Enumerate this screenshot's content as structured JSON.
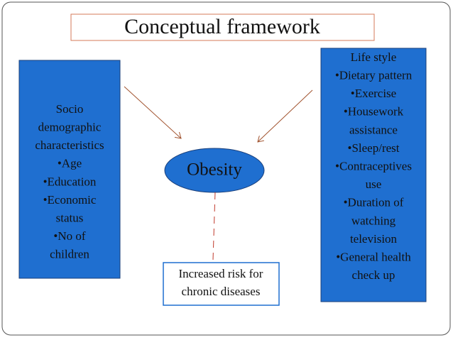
{
  "title": "Conceptual framework",
  "nodes": [
    {
      "id": "socio",
      "lines": [
        "Socio",
        "demographic",
        "characteristics",
        "•Age",
        "•Education",
        "•Economic",
        "status",
        "•No of",
        "children"
      ]
    },
    {
      "id": "lifestyle",
      "lines": [
        "Life style",
        "•Dietary pattern",
        "•Exercise",
        "•Housework",
        "assistance",
        "•Sleep/rest",
        "•Contraceptives",
        "use",
        "•Duration of",
        "watching",
        "television",
        "•General health",
        "check up"
      ]
    },
    {
      "id": "obesity",
      "lines": [
        "Obesity"
      ]
    },
    {
      "id": "risk",
      "lines": [
        "Increased risk for",
        "chronic diseases"
      ]
    }
  ]
}
